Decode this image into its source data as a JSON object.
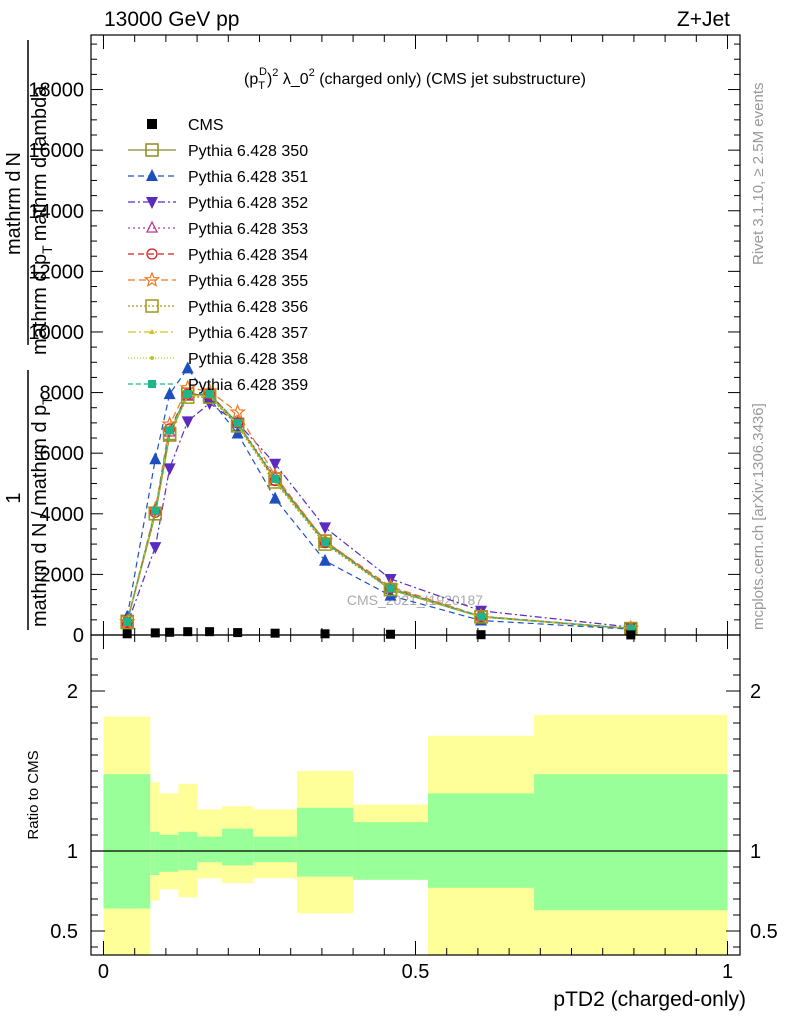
{
  "header": {
    "left": "13000 GeV pp",
    "right": "Z+Jet"
  },
  "side_labels": {
    "rivet": "Rivet 3.1.10, ≥ 2.5M events",
    "mcplots": "mcplots.cern.ch [arXiv:1306.3436]"
  },
  "colors": {
    "cms": "#000000",
    "350": "#8b8b20",
    "351": "#1f4fbf",
    "352": "#5a2bbf",
    "353": "#c0388a",
    "354": "#d42020",
    "355": "#ee7722",
    "356": "#9a9a18",
    "357": "#d4c41a",
    "358": "#b8c420",
    "359": "#20b48a",
    "band_inner": "#99ff99",
    "band_outer": "#ffff99"
  },
  "chart_data": [
    {
      "type": "line",
      "title": "(p_T^D)^2 λ_0^2 (charged only) (CMS jet substructure)",
      "title_parts": {
        "p": "(p",
        "T": "T",
        "D": "D",
        "close": ")",
        "two": "2",
        "lam": " λ_0",
        "rest": " (charged only) (CMS jet substructure)"
      },
      "ylabel": "1 / mathrm d N / mathrm d p_T mathrm d N / mathrm d p_T mathrm d lambda",
      "ylabel_parts": {
        "num1": "1",
        "den1": "mathrm d N / mathrm d p",
        "den1_sub": "T",
        "num2a": "mathrm d",
        "num2b": "N",
        "den2a": "mathrm d p",
        "den2_sub": "T",
        "den2b": "mathrm d lambda"
      },
      "watermark": "CMS_2021_I1920187",
      "ylim": [
        0,
        19800
      ],
      "xlim": [
        -0.02,
        1.02
      ],
      "yticks": [
        0,
        2000,
        4000,
        6000,
        8000,
        10000,
        12000,
        14000,
        16000,
        18000
      ],
      "x": [
        0.038,
        0.083,
        0.106,
        0.135,
        0.17,
        0.215,
        0.275,
        0.355,
        0.46,
        0.605,
        0.845
      ],
      "xerr": [
        [
          0.0,
          0.075
        ],
        [
          0.075,
          0.09
        ],
        [
          0.09,
          0.12
        ],
        [
          0.12,
          0.15
        ],
        [
          0.15,
          0.19
        ],
        [
          0.19,
          0.24
        ],
        [
          0.24,
          0.31
        ],
        [
          0.31,
          0.4
        ],
        [
          0.4,
          0.52
        ],
        [
          0.52,
          0.69
        ],
        [
          0.69,
          1.0
        ]
      ],
      "cms": [
        40,
        70,
        90,
        110,
        110,
        80,
        60,
        40,
        25,
        10,
        3
      ],
      "series": [
        {
          "name": "Pythia 6.428 350",
          "key": "350",
          "marker": "square-open",
          "dash": "",
          "values": [
            450,
            4000,
            6600,
            7950,
            7900,
            6950,
            5150,
            3100,
            1500,
            600,
            210
          ]
        },
        {
          "name": "Pythia 6.428 351",
          "key": "351",
          "marker": "triangle-up",
          "dash": "6,4",
          "values": [
            600,
            5800,
            7950,
            8800,
            7800,
            6650,
            4500,
            2450,
            1300,
            480,
            190
          ]
        },
        {
          "name": "Pythia 6.428 352",
          "key": "352",
          "marker": "triangle-down",
          "dash": "7,3,2,3",
          "values": [
            350,
            2900,
            5500,
            7050,
            7650,
            7000,
            5650,
            3550,
            1850,
            800,
            260
          ]
        },
        {
          "name": "Pythia 6.428 353",
          "key": "353",
          "marker": "triangle-up-open",
          "dash": "2,3",
          "values": [
            420,
            4100,
            6700,
            7900,
            7950,
            7000,
            5200,
            3100,
            1550,
            620,
            210
          ]
        },
        {
          "name": "Pythia 6.428 354",
          "key": "354",
          "marker": "circle-open",
          "dash": "6,4",
          "values": [
            420,
            4050,
            6800,
            7950,
            7950,
            7000,
            5100,
            3050,
            1550,
            600,
            210
          ]
        },
        {
          "name": "Pythia 6.428 355",
          "key": "355",
          "marker": "star-open",
          "dash": "7,4",
          "values": [
            430,
            4150,
            6950,
            8150,
            8050,
            7350,
            5250,
            3100,
            1600,
            620,
            220
          ]
        },
        {
          "name": "Pythia 6.428 356",
          "key": "356",
          "marker": "square-open",
          "dash": "2,2",
          "values": [
            410,
            4000,
            6650,
            7850,
            7850,
            6900,
            5050,
            3000,
            1500,
            600,
            210
          ]
        },
        {
          "name": "Pythia 6.428 357",
          "key": "357",
          "marker": "tri-small",
          "dash": "8,3,2,3",
          "values": [
            420,
            4050,
            6700,
            7900,
            7900,
            6950,
            5100,
            3050,
            1520,
            600,
            210
          ]
        },
        {
          "name": "Pythia 6.428 358",
          "key": "358",
          "marker": "dot",
          "dash": "1,2",
          "values": [
            420,
            4050,
            6700,
            7900,
            7900,
            6950,
            5100,
            3050,
            1520,
            600,
            210
          ]
        },
        {
          "name": "Pythia 6.428 359",
          "key": "359",
          "marker": "square-filled",
          "dash": "5,3",
          "values": [
            430,
            4100,
            6750,
            7950,
            7950,
            7000,
            5150,
            3050,
            1530,
            610,
            210
          ]
        }
      ],
      "legend_cms": "CMS"
    },
    {
      "type": "area",
      "ylabel": "Ratio to CMS",
      "xlabel": "pTD2 (charged-only)",
      "xlim": [
        -0.02,
        1.02
      ],
      "ylim": [
        0.35,
        2.35
      ],
      "yticks": [
        0.5,
        1,
        2
      ],
      "ytick_labels": [
        "0.5",
        "1",
        "2"
      ],
      "xticks": [
        0,
        0.5,
        1
      ],
      "xtick_labels": [
        "0",
        "0.5",
        "1"
      ],
      "bins": [
        0.0,
        0.075,
        0.09,
        0.12,
        0.15,
        0.19,
        0.24,
        0.31,
        0.4,
        0.52,
        0.69,
        1.0
      ],
      "inner_upper": [
        1.48,
        1.12,
        1.1,
        1.12,
        1.09,
        1.14,
        1.09,
        1.27,
        1.18,
        1.36,
        1.48
      ],
      "inner_lower": [
        0.64,
        0.85,
        0.87,
        0.88,
        0.93,
        0.91,
        0.93,
        0.84,
        0.82,
        0.77,
        0.63
      ],
      "outer_upper": [
        1.84,
        1.43,
        1.36,
        1.42,
        1.26,
        1.28,
        1.26,
        1.5,
        1.29,
        1.72,
        1.85
      ],
      "outer_lower": [
        0.0,
        0.69,
        0.76,
        0.71,
        0.83,
        0.8,
        0.83,
        0.61,
        0.82,
        0.0,
        0.0
      ],
      "reference": 1
    }
  ]
}
